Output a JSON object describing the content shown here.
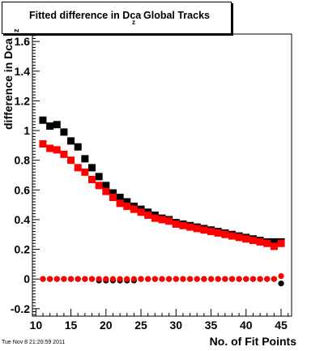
{
  "title": {
    "main": "Fitted difference in Dca",
    "subscript": "z",
    "tail": "Global Tracks"
  },
  "footer": "Tue Nov  8 21:20:59 2011",
  "chart_data": {
    "type": "scatter",
    "title": "Fitted difference in Dca_z Global Tracks",
    "xlabel": "No. of Fit Points",
    "ylabel": "difference in Dca",
    "ylabel_subscript": "z",
    "xlim": [
      9.5,
      46.5
    ],
    "ylim": [
      -0.25,
      1.65
    ],
    "x_ticks": [
      10,
      15,
      20,
      25,
      30,
      35,
      40,
      45
    ],
    "y_ticks": [
      -0.2,
      0,
      0.2,
      0.4,
      0.6,
      0.8,
      1,
      1.2,
      1.4,
      1.6
    ],
    "y_tick_labels": [
      "-0.2",
      "0",
      "0.2",
      "0.4",
      "0.6",
      "0.8",
      "1",
      "1.2",
      "1.4",
      "1.6"
    ],
    "series": [
      {
        "color": "#000000",
        "marker": "square",
        "x": [
          11,
          12,
          13,
          14,
          15,
          16,
          17,
          18,
          19,
          20,
          21,
          22,
          23,
          24,
          25,
          26,
          27,
          28,
          29,
          30,
          31,
          32,
          33,
          34,
          35,
          36,
          37,
          38,
          39,
          40,
          41,
          42,
          43,
          44,
          45
        ],
        "y": [
          1.07,
          1.03,
          1.04,
          0.99,
          0.93,
          0.89,
          0.81,
          0.75,
          0.69,
          0.63,
          0.58,
          0.55,
          0.52,
          0.49,
          0.47,
          0.45,
          0.43,
          0.41,
          0.4,
          0.38,
          0.37,
          0.36,
          0.35,
          0.34,
          0.33,
          0.32,
          0.31,
          0.3,
          0.29,
          0.28,
          0.27,
          0.26,
          0.25,
          0.25,
          0.25
        ]
      },
      {
        "color": "#ff0000",
        "marker": "square",
        "x": [
          11,
          12,
          13,
          14,
          15,
          16,
          17,
          18,
          19,
          20,
          21,
          22,
          23,
          24,
          25,
          26,
          27,
          28,
          29,
          30,
          31,
          32,
          33,
          34,
          35,
          36,
          37,
          38,
          39,
          40,
          41,
          42,
          43,
          44,
          45
        ],
        "y": [
          0.91,
          0.88,
          0.87,
          0.84,
          0.8,
          0.75,
          0.72,
          0.67,
          0.63,
          0.59,
          0.55,
          0.51,
          0.49,
          0.47,
          0.45,
          0.43,
          0.41,
          0.4,
          0.39,
          0.37,
          0.36,
          0.35,
          0.34,
          0.33,
          0.32,
          0.31,
          0.3,
          0.29,
          0.28,
          0.27,
          0.26,
          0.25,
          0.24,
          0.22,
          0.24
        ]
      },
      {
        "color": "#000000",
        "marker": "circle",
        "x": [
          11,
          12,
          13,
          14,
          15,
          16,
          17,
          18,
          19,
          20,
          21,
          22,
          23,
          24,
          25,
          26,
          27,
          28,
          29,
          30,
          31,
          32,
          33,
          34,
          35,
          36,
          37,
          38,
          39,
          40,
          41,
          42,
          43,
          44,
          45
        ],
        "y": [
          0,
          0,
          0,
          0,
          0,
          0,
          0,
          0,
          -0.01,
          -0.01,
          -0.01,
          -0.01,
          -0.01,
          -0.01,
          0,
          0,
          0,
          0,
          0,
          0,
          0,
          0,
          0,
          0,
          0,
          0,
          0,
          0,
          0,
          0,
          0,
          0,
          0,
          0,
          -0.03
        ]
      },
      {
        "color": "#ff0000",
        "marker": "circle",
        "x": [
          11,
          12,
          13,
          14,
          15,
          16,
          17,
          18,
          19,
          20,
          21,
          22,
          23,
          24,
          25,
          26,
          27,
          28,
          29,
          30,
          31,
          32,
          33,
          34,
          35,
          36,
          37,
          38,
          39,
          40,
          41,
          42,
          43,
          44,
          45
        ],
        "y": [
          0,
          0,
          0,
          0,
          0,
          0,
          0,
          0,
          0,
          0,
          0,
          0,
          0,
          0,
          0,
          0,
          0,
          0,
          0,
          0,
          0,
          0,
          0,
          0,
          0,
          0,
          0,
          0,
          0,
          0,
          0,
          0,
          0,
          0,
          0.02
        ]
      }
    ]
  }
}
